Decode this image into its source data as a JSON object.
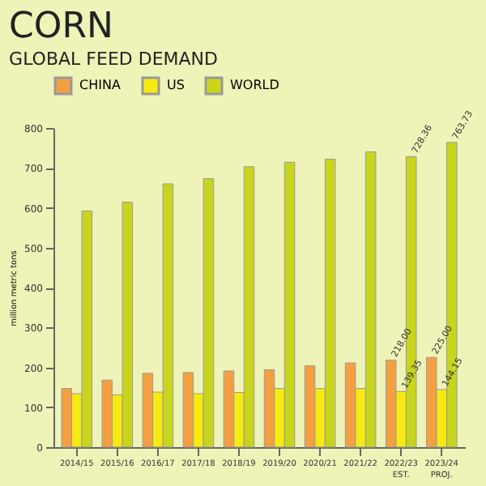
{
  "chart_data": {
    "type": "bar",
    "title": "CORN",
    "subtitle": "GLOBAL FEED DEMAND",
    "ylabel": "million metric tons",
    "categories": [
      "2014/15",
      "2015/16",
      "2016/17",
      "2017/18",
      "2018/19",
      "2019/20",
      "2020/21",
      "2021/22",
      "2022/23 EST.",
      "2023/24 PROJ."
    ],
    "series": [
      {
        "name": "CHINA",
        "color": "#f5a040",
        "values": [
          147,
          168,
          185,
          187,
          191,
          194,
          204,
          211,
          218.0,
          225.0
        ],
        "value_labels": [
          null,
          null,
          null,
          null,
          null,
          null,
          null,
          null,
          "218.00",
          "225.00"
        ]
      },
      {
        "name": "US",
        "color": "#f7ea10",
        "values": [
          134,
          131,
          138,
          134,
          137,
          147,
          147,
          147,
          139.35,
          144.15
        ],
        "value_labels": [
          null,
          null,
          null,
          null,
          null,
          null,
          null,
          null,
          "139.35",
          "144.15"
        ]
      },
      {
        "name": "WORLD",
        "color": "#c9d51c",
        "values": [
          592,
          614,
          660,
          673,
          703,
          714,
          722,
          740,
          728.36,
          763.73
        ],
        "value_labels": [
          null,
          null,
          null,
          null,
          null,
          null,
          null,
          null,
          "728.36",
          "763.73"
        ]
      }
    ],
    "ylim": [
      0,
      800
    ],
    "yticks": [
      0,
      100,
      200,
      300,
      400,
      500,
      600,
      700,
      800
    ],
    "grid": false,
    "legend": "top"
  }
}
